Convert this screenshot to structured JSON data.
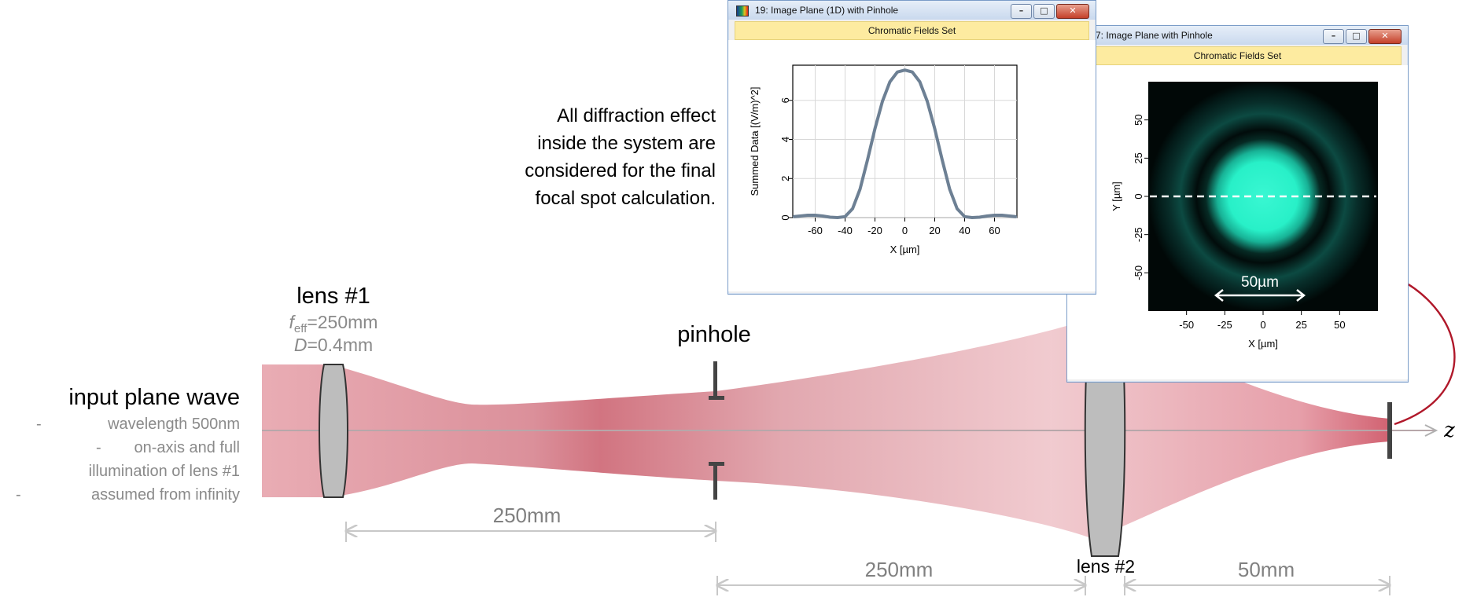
{
  "colors": {
    "beam": "#cf6d7a",
    "lens_fill": "#bfbfbf",
    "arrow": "#b0182a",
    "dimension_line": "#c8c8c8",
    "plot_line": "#6d8094",
    "spot": "#28f0c8",
    "window_band": "#fdeba0"
  },
  "input": {
    "title": "input plane wave",
    "items": [
      "wavelength 500nm",
      "on-axis and full",
      "illumination of lens #1",
      "assumed from infinity"
    ],
    "bullet": "-"
  },
  "lens1": {
    "title": "lens #1",
    "f_symbol": "f",
    "f_sub": "eff",
    "f_value": "=250mm",
    "d_symbol": "D",
    "d_value": "=0.4mm"
  },
  "pinhole": {
    "title": "pinhole"
  },
  "lens2": {
    "title": "lens #2"
  },
  "axis": {
    "z_label": "z"
  },
  "dims": {
    "d1": "250mm",
    "d2": "250mm",
    "d3": "50mm"
  },
  "note": {
    "lines": [
      "All diffraction effect",
      "inside the system are",
      "considered for the final",
      "focal spot calculation."
    ]
  },
  "window1d": {
    "title": "19: Image Plane (1D) with Pinhole",
    "band": "Chromatic Fields Set",
    "btn_min": "–",
    "btn_max": "□",
    "btn_close": "✕"
  },
  "window2d": {
    "title": "7: Image Plane with Pinhole",
    "band": "Chromatic Fields Set",
    "btn_min": "–",
    "btn_max": "□",
    "btn_close": "✕",
    "scale_label": "50µm"
  },
  "chart_data": [
    {
      "type": "line",
      "xlabel": "X [µm]",
      "ylabel": "Summed Data [(V/m)^2]",
      "xlim": [
        -75,
        75
      ],
      "ylim": [
        0,
        7.8
      ],
      "xticks": [
        -60,
        -40,
        -20,
        0,
        20,
        40,
        60
      ],
      "yticks": [
        0,
        2,
        4,
        6
      ],
      "grid": true,
      "x": [
        -74,
        -70,
        -65,
        -60,
        -55,
        -50,
        -45,
        -40,
        -35,
        -30,
        -25,
        -20,
        -15,
        -10,
        -5,
        0,
        5,
        10,
        15,
        20,
        25,
        30,
        35,
        40,
        45,
        50,
        55,
        60,
        65,
        70,
        74
      ],
      "y": [
        0.05,
        0.08,
        0.12,
        0.12,
        0.08,
        0.02,
        0.0,
        0.05,
        0.45,
        1.45,
        2.95,
        4.55,
        5.95,
        6.95,
        7.45,
        7.55,
        7.45,
        6.95,
        5.95,
        4.55,
        2.95,
        1.45,
        0.45,
        0.05,
        0.0,
        0.02,
        0.08,
        0.12,
        0.12,
        0.08,
        0.05
      ]
    },
    {
      "type": "heatmap",
      "xlabel": "X [µm]",
      "ylabel": "Y [µm]",
      "xlim": [
        -75,
        75
      ],
      "ylim": [
        -75,
        75
      ],
      "xticks": [
        -50,
        -25,
        0,
        25,
        50
      ],
      "yticks": [
        50,
        25,
        0,
        -25,
        -50
      ],
      "annotation": "50µm"
    }
  ]
}
